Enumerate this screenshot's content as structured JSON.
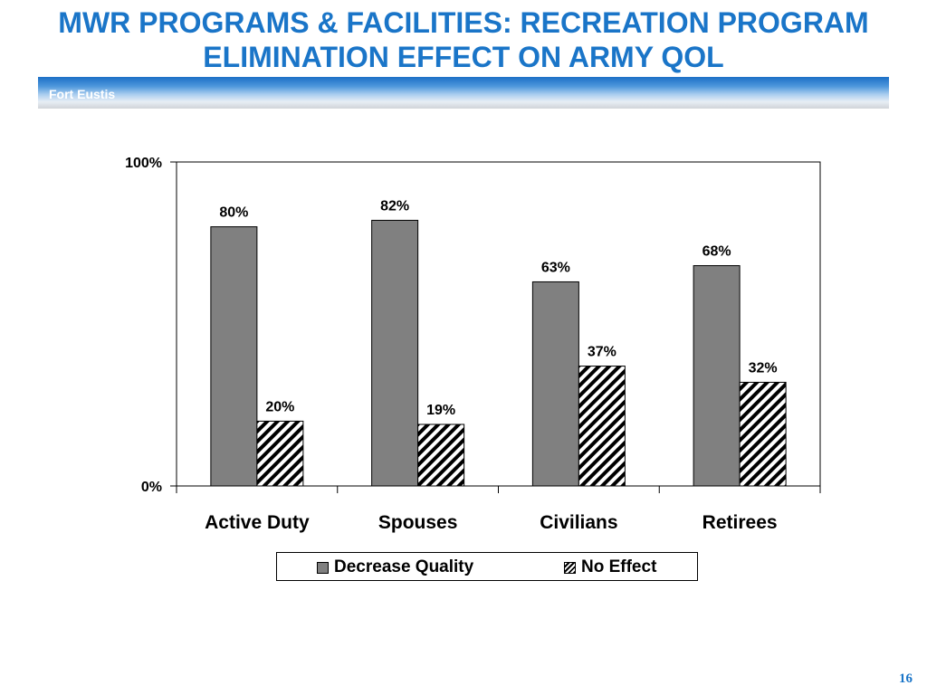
{
  "slide": {
    "title_line1": "MWR PROGRAMS & FACILITIES: RECREATION PROGRAM",
    "title_line2": "ELIMINATION EFFECT ON ARMY QOL",
    "banner_label": "Fort Eustis",
    "page_number": "16",
    "title_color": "#1a75c8"
  },
  "chart_data": {
    "type": "bar",
    "categories": [
      "Active Duty",
      "Spouses",
      "Civilians",
      "Retirees"
    ],
    "series": [
      {
        "name": "Decrease Quality",
        "values": [
          80,
          82,
          63,
          68
        ],
        "labels": [
          "80%",
          "82%",
          "63%",
          "68%"
        ],
        "color": "#808080",
        "pattern": "solid"
      },
      {
        "name": "No Effect",
        "values": [
          20,
          19,
          37,
          32
        ],
        "labels": [
          "20%",
          "19%",
          "37%",
          "32%"
        ],
        "color": "#000000",
        "pattern": "hatched"
      }
    ],
    "title": "",
    "xlabel": "",
    "ylabel": "",
    "ylim": [
      0,
      100
    ],
    "ytick_labels": [
      "0%",
      "100%"
    ],
    "ytick_values": [
      0,
      100
    ],
    "grid": false,
    "legend_position": "bottom"
  }
}
